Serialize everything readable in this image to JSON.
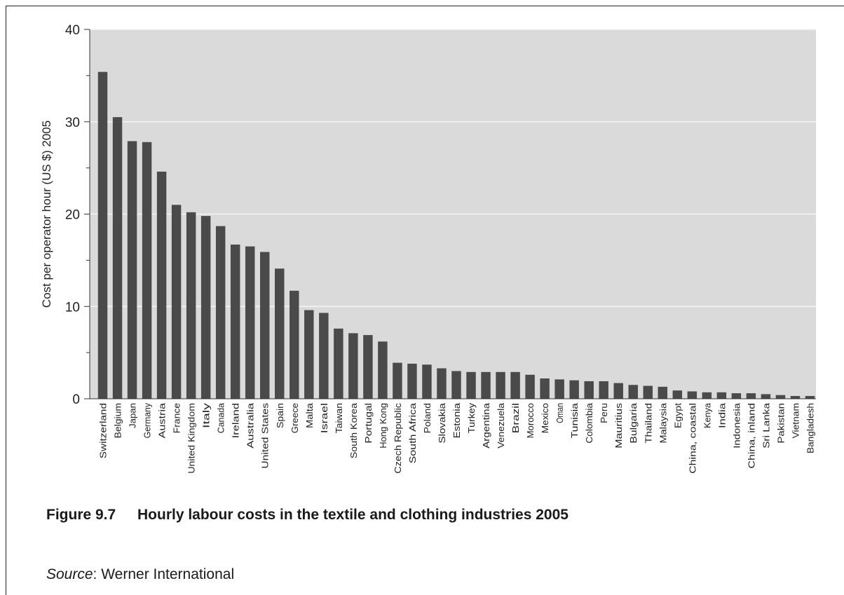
{
  "figure": {
    "number": "Figure 9.7",
    "title": "Hourly labour costs in the textile and clothing industries 2005",
    "source_label": "Source",
    "source_sep": ":",
    "source_text": " Werner International"
  },
  "chart_data": {
    "type": "bar",
    "title": "",
    "xlabel": "",
    "ylabel": "Cost per operator hour (US $) 2005",
    "ylim": [
      0,
      40
    ],
    "yticks": [
      0,
      10,
      20,
      30,
      40
    ],
    "grid": true,
    "categories": [
      "Switzerland",
      "Belgium",
      "Japan",
      "Germany",
      "Austria",
      "France",
      "United Kingdom",
      "Italy",
      "Canada",
      "Ireland",
      "Australia",
      "United States",
      "Spain",
      "Greece",
      "Malta",
      "Israel",
      "Taiwan",
      "South Korea",
      "Portugal",
      "Hong Kong",
      "Czech Republic",
      "South Africa",
      "Poland",
      "Slovakia",
      "Estonia",
      "Turkey",
      "Argentina",
      "Venezuela",
      "Brazil",
      "Morocco",
      "Mexico",
      "Oman",
      "Tunisia",
      "Colombia",
      "Peru",
      "Mauritius",
      "Bulgaria",
      "Thailand",
      "Malaysia",
      "Egypt",
      "China, coastal",
      "Kenya",
      "India",
      "Indonesia",
      "China, inland",
      "Sri Lanka",
      "Pakistan",
      "Vietnam",
      "Bangladesh"
    ],
    "values": [
      35.4,
      30.5,
      27.9,
      27.8,
      24.6,
      21.0,
      20.2,
      19.8,
      18.7,
      16.7,
      16.5,
      15.9,
      14.1,
      11.7,
      9.6,
      9.3,
      7.6,
      7.1,
      6.9,
      6.2,
      3.9,
      3.8,
      3.7,
      3.3,
      3.0,
      2.9,
      2.9,
      2.9,
      2.9,
      2.6,
      2.2,
      2.1,
      2.0,
      1.9,
      1.9,
      1.7,
      1.5,
      1.4,
      1.3,
      0.9,
      0.8,
      0.7,
      0.7,
      0.6,
      0.6,
      0.5,
      0.4,
      0.3,
      0.3
    ],
    "colors": {
      "bar": "#4a4a4a",
      "plot_bg": "#dadada",
      "grid": "#f4f4f4",
      "axis": "#333333"
    }
  }
}
